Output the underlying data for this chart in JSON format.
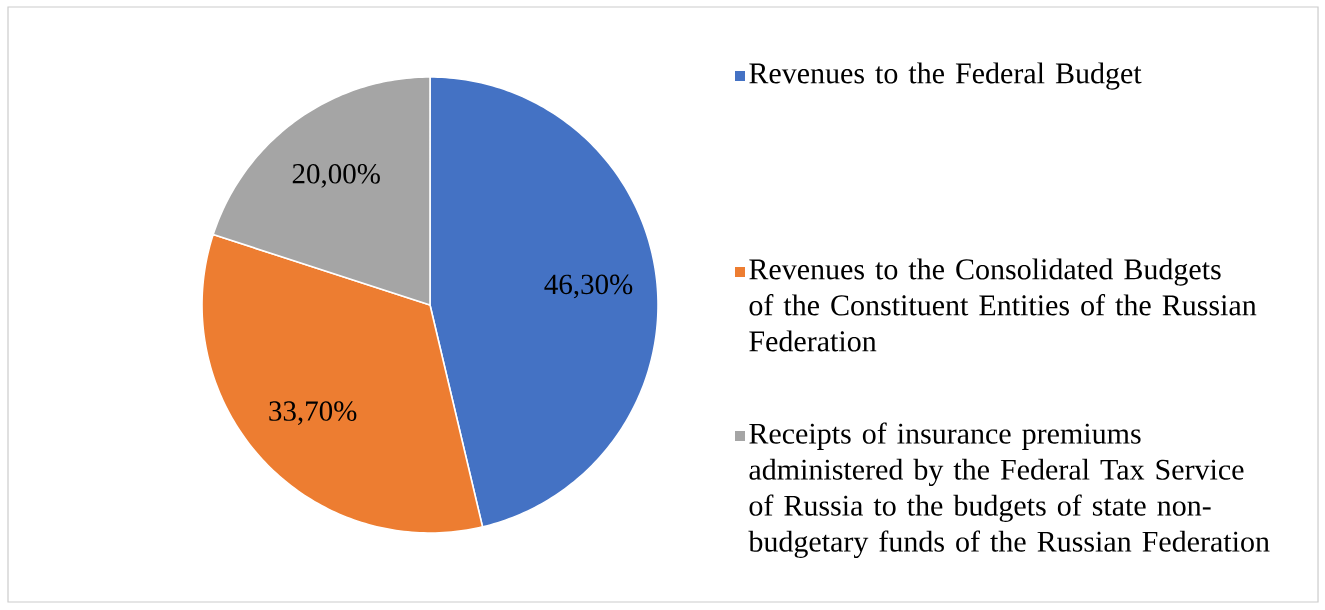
{
  "chart_data": {
    "type": "pie",
    "categories": [
      "Revenues to the Federal Budget",
      "Revenues to the Consolidated Budgets of the Constituent Entities of the Russian Federation",
      "Receipts of insurance premiums administered by the Federal Tax Service of Russia to the budgets of state non-budgetary funds of the Russian Federation"
    ],
    "values": [
      46.3,
      33.7,
      20.0
    ],
    "value_labels": [
      "46,30%",
      "33,70%",
      "20,00%"
    ],
    "colors": [
      "#4472c4",
      "#ed7d31",
      "#a5a5a5"
    ],
    "legend": "right"
  }
}
